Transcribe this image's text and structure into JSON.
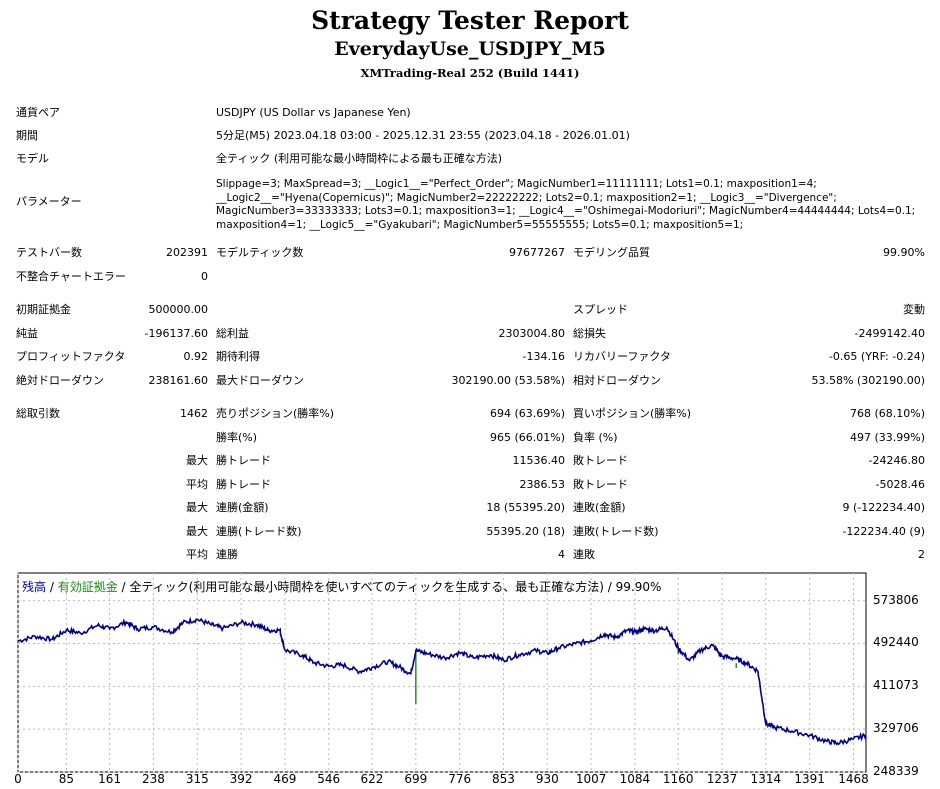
{
  "header": {
    "title": "Strategy Tester Report",
    "subtitle": "EverydayUse_USDJPY_M5",
    "build": "XMTrading-Real 252 (Build 1441)"
  },
  "info": {
    "pair_label": "通貨ペア",
    "pair_value": "USDJPY (US Dollar vs Japanese Yen)",
    "period_label": "期間",
    "period_value": "5分足(M5) 2023.04.18 03:00 - 2025.12.31 23:55 (2023.04.18 - 2026.01.01)",
    "model_label": "モデル",
    "model_value": "全ティック (利用可能な最小時間枠による最も正確な方法)",
    "params_label": "パラメーター",
    "params_value": "Slippage=3; MaxSpread=3; __Logic1__=\"Perfect_Order\"; MagicNumber1=11111111; Lots1=0.1; maxposition1=4; __Logic2__=\"Hyena(Copernicus)\"; MagicNumber2=22222222; Lots2=0.1; maxposition2=1; __Logic3__=\"Divergence\"; MagicNumber3=33333333; Lots3=0.1; maxposition3=1; __Logic4__=\"Oshimegai-Modoriuri\"; MagicNumber4=44444444; Lots4=0.1; maxposition4=1; __Logic5__=\"Gyakubari\"; MagicNumber5=55555555; Lots5=0.1; maxposition5=1;"
  },
  "stats": {
    "bars_label": "テストバー数",
    "bars_value": "202391",
    "ticks_label": "モデルティック数",
    "ticks_value": "97677267",
    "quality_label": "モデリング品質",
    "quality_value": "99.90%",
    "mismatch_label": "不整合チャートエラー",
    "mismatch_value": "0",
    "deposit_label": "初期証拠金",
    "deposit_value": "500000.00",
    "spread_label": "スプレッド",
    "spread_value": "変動",
    "net_label": "純益",
    "net_value": "-196137.60",
    "gross_profit_label": "総利益",
    "gross_profit_value": "2303004.80",
    "gross_loss_label": "総損失",
    "gross_loss_value": "-2499142.40",
    "pf_label": "プロフィットファクタ",
    "pf_value": "0.92",
    "expected_label": "期待利得",
    "expected_value": "-134.16",
    "recovery_label": "リカバリーファクタ",
    "recovery_value": "-0.65 (YRF: -0.24)",
    "abs_dd_label": "絶対ドローダウン",
    "abs_dd_value": "238161.60",
    "max_dd_label": "最大ドローダウン",
    "max_dd_value": "302190.00 (53.58%)",
    "rel_dd_label": "相対ドローダウン",
    "rel_dd_value": "53.58% (302190.00)",
    "trades_label": "総取引数",
    "trades_value": "1462",
    "short_label": "売りポジション(勝率%)",
    "short_value": "694 (63.69%)",
    "long_label": "買いポジション(勝率%)",
    "long_value": "768 (68.10%)",
    "winrate_label": "勝率(%)",
    "winrate_value": "965 (66.01%)",
    "lossrate_label": "負率 (%)",
    "lossrate_value": "497 (33.99%)",
    "max_word": "最大",
    "avg_word": "平均",
    "max_win_label": "勝トレード",
    "max_win_value": "11536.40",
    "max_loss_label": "敗トレード",
    "max_loss_value": "-24246.80",
    "avg_win_label": "勝トレード",
    "avg_win_value": "2386.53",
    "avg_loss_label": "敗トレード",
    "avg_loss_value": "-5028.46",
    "max_consec_win_amt_label": "連勝(金額)",
    "max_consec_win_amt_value": "18 (55395.20)",
    "max_consec_loss_amt_label": "連敗(金額)",
    "max_consec_loss_amt_value": "9 (-122234.40)",
    "max_consec_win_cnt_label": "連勝(トレード数)",
    "max_consec_win_cnt_value": "55395.20 (18)",
    "max_consec_loss_cnt_label": "連敗(トレード数)",
    "max_consec_loss_cnt_value": "-122234.40 (9)",
    "avg_consec_win_label": "連勝",
    "avg_consec_win_value": "4",
    "avg_consec_loss_label": "連敗",
    "avg_consec_loss_value": "2"
  },
  "chart_legend": {
    "balance": "残高",
    "sep1": " / ",
    "equity": "有効証拠金",
    "rest": " / 全ティック(利用可能な最小時間枠を使いすべてのティックを生成する、最も正確な方法) / 99.90%"
  },
  "chart_data": {
    "type": "line",
    "series": [
      {
        "name": "残高",
        "color": "#00008b",
        "x": [
          0,
          30,
          60,
          85,
          110,
          140,
          161,
          190,
          210,
          238,
          270,
          290,
          315,
          340,
          360,
          392,
          420,
          440,
          460,
          469,
          500,
          520,
          546,
          570,
          600,
          622,
          650,
          670,
          690,
          699,
          720,
          750,
          776,
          800,
          830,
          853,
          880,
          910,
          930,
          950,
          980,
          1007,
          1030,
          1050,
          1070,
          1084,
          1100,
          1120,
          1140,
          1160,
          1180,
          1200,
          1220,
          1237,
          1260,
          1280,
          1300,
          1314,
          1330,
          1360,
          1391,
          1420,
          1440,
          1468,
          1490
        ],
        "y": [
          497000,
          506000,
          500000,
          518000,
          512000,
          527000,
          520000,
          533000,
          520000,
          524000,
          514000,
          532000,
          538000,
          528000,
          521000,
          532000,
          528000,
          517000,
          518000,
          480000,
          470000,
          456000,
          449000,
          452000,
          439000,
          447000,
          458000,
          448000,
          435000,
          479000,
          473000,
          465000,
          475000,
          465000,
          471000,
          461000,
          471000,
          479000,
          474000,
          484000,
          492000,
          498000,
          510000,
          504000,
          517000,
          514000,
          520000,
          517000,
          523000,
          484000,
          460000,
          480000,
          489000,
          468000,
          464000,
          455000,
          440000,
          340000,
          333000,
          326000,
          318000,
          307000,
          303000,
          311000,
          318000
        ]
      },
      {
        "name": "有効証拠金",
        "color": "#2e8b2e",
        "spikes": [
          {
            "x": 699,
            "low": 378000
          },
          {
            "x": 1007,
            "low": 494000
          },
          {
            "x": 1160,
            "low": 472000
          },
          {
            "x": 1262,
            "low": 446000
          }
        ]
      }
    ],
    "ylim": [
      248339,
      594000
    ],
    "xlim": [
      0,
      1490
    ],
    "y_ticks": [
      "573806",
      "492440",
      "411073",
      "329706",
      "248339"
    ],
    "x_ticks": [
      "0",
      "85",
      "161",
      "238",
      "315",
      "392",
      "469",
      "546",
      "622",
      "699",
      "776",
      "853",
      "930",
      "1007",
      "1084",
      "1160",
      "1237",
      "1314",
      "1391",
      "1468"
    ],
    "grid": true
  }
}
